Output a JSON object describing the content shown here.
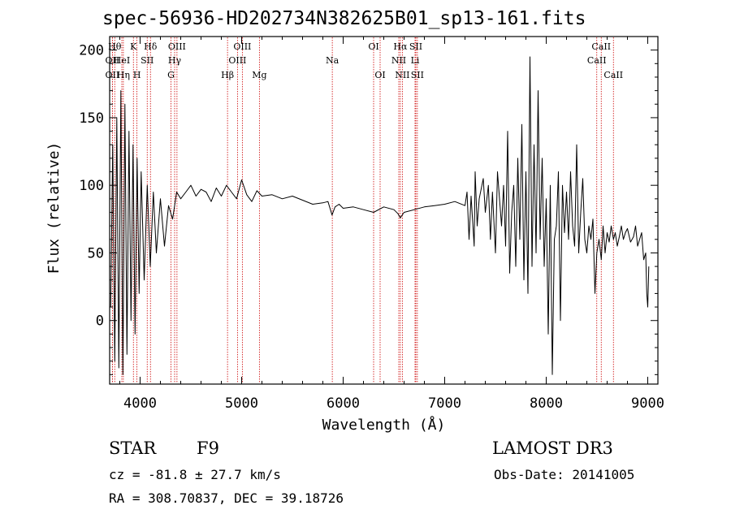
{
  "chart_data": {
    "type": "line",
    "title": "spec-56936-HD202734N382625B01_sp13-161.fits",
    "xlabel": "Wavelength (Å)",
    "ylabel": "Flux (relative)",
    "xlim": [
      3700,
      9100
    ],
    "ylim": [
      -47,
      210
    ],
    "xticks": [
      4000,
      5000,
      6000,
      7000,
      8000,
      9000
    ],
    "yticks": [
      0,
      50,
      100,
      150,
      200
    ],
    "grid": false,
    "legend": "none",
    "series": [
      {
        "x": [
          3710,
          3730,
          3750,
          3770,
          3790,
          3810,
          3830,
          3850,
          3870,
          3890,
          3910,
          3930,
          3950,
          3970,
          3990,
          4010,
          4040,
          4070,
          4100,
          4130,
          4160,
          4200,
          4240,
          4280,
          4320,
          4360,
          4400,
          4450,
          4500,
          4550,
          4600,
          4650,
          4700,
          4750,
          4800,
          4850,
          4900,
          4950,
          5000,
          5050,
          5100,
          5150,
          5200,
          5300,
          5400,
          5500,
          5600,
          5700,
          5800,
          5850,
          5890,
          5920,
          5960,
          6000,
          6100,
          6200,
          6300,
          6400,
          6500,
          6540,
          6563,
          6600,
          6700,
          6800,
          6900,
          7000,
          7100,
          7200,
          7220,
          7240,
          7260,
          7290,
          7300,
          7320,
          7340,
          7380,
          7400,
          7430,
          7450,
          7470,
          7500,
          7520,
          7560,
          7580,
          7600,
          7620,
          7640,
          7660,
          7680,
          7700,
          7720,
          7740,
          7760,
          7780,
          7800,
          7820,
          7840,
          7860,
          7880,
          7900,
          7920,
          7940,
          7960,
          7980,
          8000,
          8020,
          8040,
          8060,
          8080,
          8100,
          8120,
          8140,
          8160,
          8180,
          8200,
          8220,
          8240,
          8260,
          8280,
          8300,
          8320,
          8340,
          8360,
          8380,
          8400,
          8420,
          8440,
          8460,
          8480,
          8498,
          8520,
          8542,
          8560,
          8580,
          8600,
          8620,
          8640,
          8662,
          8680,
          8700,
          8720,
          8740,
          8760,
          8780,
          8800,
          8830,
          8860,
          8880,
          8900,
          8920,
          8940,
          8960,
          8980,
          8990,
          9000,
          9010
        ],
        "values": [
          10,
          130,
          -30,
          150,
          -35,
          170,
          -40,
          160,
          -25,
          140,
          0,
          130,
          -10,
          120,
          20,
          110,
          30,
          100,
          40,
          95,
          50,
          90,
          55,
          85,
          75,
          95,
          90,
          95,
          100,
          92,
          97,
          95,
          88,
          98,
          92,
          100,
          95,
          90,
          104,
          93,
          88,
          96,
          92,
          93,
          90,
          92,
          89,
          86,
          87,
          88,
          78,
          84,
          86,
          83,
          84,
          82,
          80,
          84,
          82,
          79,
          76,
          80,
          82,
          84,
          85,
          86,
          88,
          85,
          95,
          60,
          92,
          55,
          110,
          70,
          90,
          105,
          80,
          100,
          60,
          95,
          50,
          110,
          70,
          100,
          55,
          140,
          35,
          80,
          100,
          40,
          120,
          60,
          145,
          30,
          110,
          20,
          195,
          40,
          130,
          50,
          170,
          60,
          120,
          40,
          90,
          -10,
          100,
          -40,
          60,
          70,
          110,
          0,
          100,
          65,
          95,
          60,
          110,
          70,
          55,
          130,
          50,
          80,
          105,
          60,
          50,
          70,
          60,
          75,
          20,
          50,
          60,
          45,
          70,
          50,
          65,
          58,
          70,
          60,
          65,
          55,
          62,
          70,
          60,
          65,
          68,
          58,
          62,
          70,
          55,
          60,
          65,
          45,
          50,
          20,
          10,
          40
        ]
      }
    ],
    "line_labels": [
      {
        "text": "OII",
        "x": 3727,
        "row": 3
      },
      {
        "text": "OII",
        "x": 3727,
        "row": 2
      },
      {
        "text": "Hθ",
        "x": 3750,
        "row": 1
      },
      {
        "text": "HeI",
        "x": 3820,
        "row": 2
      },
      {
        "text": "Hη",
        "x": 3835,
        "row": 3
      },
      {
        "text": "K",
        "x": 3934,
        "row": 1
      },
      {
        "text": "H",
        "x": 3969,
        "row": 3
      },
      {
        "text": "SII",
        "x": 4070,
        "row": 2
      },
      {
        "text": "Hδ",
        "x": 4102,
        "row": 1
      },
      {
        "text": "G",
        "x": 4304,
        "row": 3
      },
      {
        "text": "Hγ",
        "x": 4340,
        "row": 2
      },
      {
        "text": "OIII",
        "x": 4363,
        "row": 1
      },
      {
        "text": "Hβ",
        "x": 4861,
        "row": 3
      },
      {
        "text": "OIII",
        "x": 4959,
        "row": 2
      },
      {
        "text": "OIII",
        "x": 5007,
        "row": 1
      },
      {
        "text": "Mg",
        "x": 5175,
        "row": 3
      },
      {
        "text": "Na",
        "x": 5893,
        "row": 2
      },
      {
        "text": "OI",
        "x": 6300,
        "row": 1
      },
      {
        "text": "OI",
        "x": 6364,
        "row": 3
      },
      {
        "text": "NII",
        "x": 6548,
        "row": 2
      },
      {
        "text": "Hα",
        "x": 6563,
        "row": 1
      },
      {
        "text": "NII",
        "x": 6583,
        "row": 3
      },
      {
        "text": "Li",
        "x": 6708,
        "row": 2
      },
      {
        "text": "SII",
        "x": 6716,
        "row": 1
      },
      {
        "text": "SII",
        "x": 6731,
        "row": 3
      },
      {
        "text": "CaII",
        "x": 8498,
        "row": 2
      },
      {
        "text": "CaII",
        "x": 8542,
        "row": 1
      },
      {
        "text": "CaII",
        "x": 8662,
        "row": 3
      }
    ]
  },
  "info": {
    "object_class": "STAR",
    "subclass": "F9",
    "survey": "LAMOST DR3",
    "redshift": "cz = -81.8 ± 27.7 km/s",
    "obs_date": "Obs-Date: 20141005",
    "coords": "RA = 308.70837, DEC =  39.18726"
  },
  "colors": {
    "spectrum": "#000000",
    "line_markers": "#cc0000",
    "background": "#ffffff"
  }
}
